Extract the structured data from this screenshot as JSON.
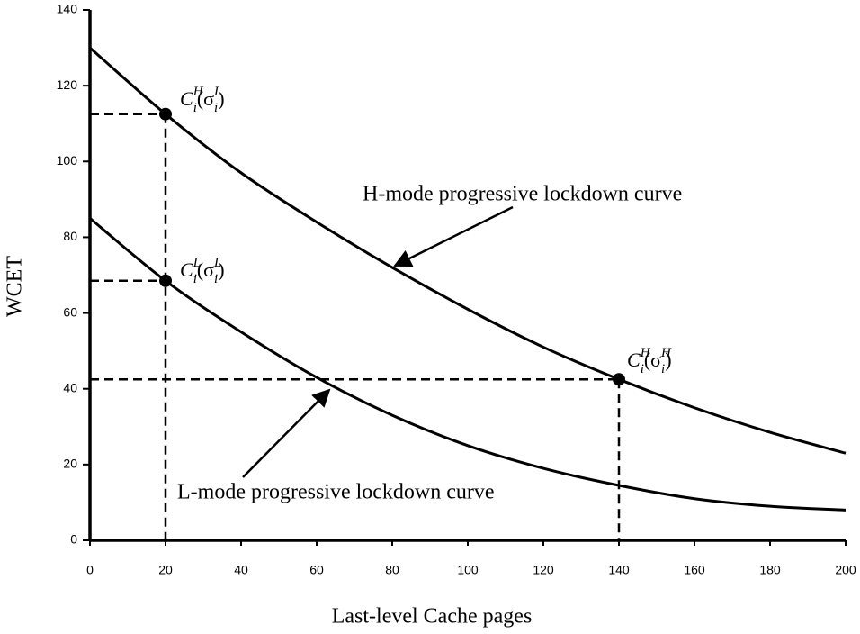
{
  "chart_data": {
    "type": "line",
    "xlabel": "Last-level Cache pages",
    "ylabel": "WCET",
    "xlim": [
      0,
      200
    ],
    "ylim": [
      0,
      140
    ],
    "xticks": [
      0,
      20,
      40,
      60,
      80,
      100,
      120,
      140,
      160,
      180,
      200
    ],
    "yticks": [
      0,
      20,
      40,
      60,
      80,
      100,
      120,
      140
    ],
    "x": [
      0,
      20,
      40,
      60,
      80,
      100,
      120,
      140,
      160,
      180,
      200
    ],
    "series": [
      {
        "color": "#000000",
        "values": [
          130,
          112.5,
          97,
          84,
          72,
          61,
          51,
          42.5,
          35,
          28.5,
          23
        ]
      },
      {
        "color": "#000000",
        "values": [
          85,
          68.5,
          55,
          43,
          33,
          25,
          19,
          14.5,
          11,
          9,
          8
        ]
      }
    ],
    "annotations": [
      "H-mode progressive lockdown curve",
      "L-mode progressive lockdown curve"
    ],
    "markers": [
      {
        "x": 20,
        "y": 112.5,
        "label": [
          "C",
          "H",
          "i",
          "(σ",
          "L",
          "i",
          ")"
        ]
      },
      {
        "x": 20,
        "y": 68.5,
        "label": [
          "C",
          "L",
          "i",
          "(σ",
          "L",
          "i",
          ")"
        ]
      },
      {
        "x": 140,
        "y": 42.5,
        "label": [
          "C",
          "H",
          "i",
          "(σ",
          "H",
          "i",
          ")"
        ]
      }
    ]
  }
}
